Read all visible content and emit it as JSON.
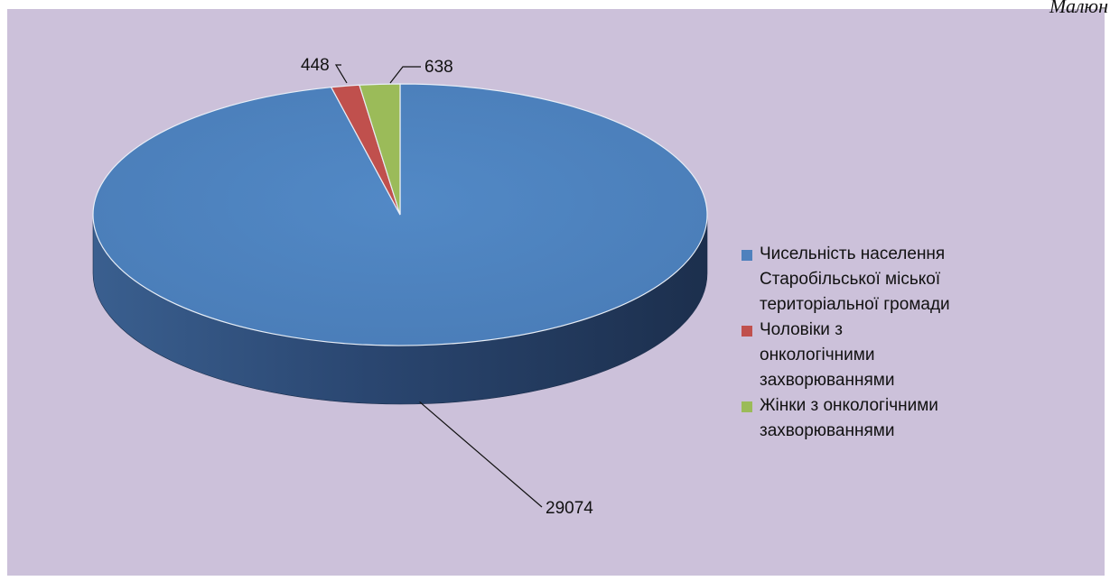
{
  "caption_fragment": "Малюн",
  "chart_data": {
    "type": "pie",
    "title": "",
    "three_d": true,
    "slices": [
      {
        "legend": [
          "Чисельність населення",
          "Старобільської міської",
          "територіальної громади"
        ],
        "value": 29074,
        "label": "29074",
        "color": "#4f81bd"
      },
      {
        "legend": [
          "Чоловіки з",
          "онкологічними",
          "захворюваннями"
        ],
        "value": 448,
        "label": "448",
        "color": "#c0504d"
      },
      {
        "legend": [
          "Жінки з онкологічними",
          "захворюваннями"
        ],
        "value": 638,
        "label": "638",
        "color": "#9bbb59"
      }
    ],
    "legend_position": "right",
    "background": "#ccc1da"
  }
}
